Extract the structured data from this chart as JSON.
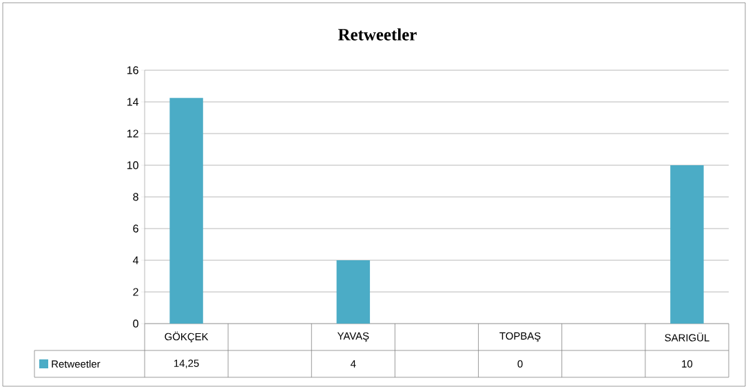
{
  "chart_data": {
    "type": "bar",
    "title": "Retweetler",
    "categories": [
      "GÖKÇEK",
      null,
      "YAVAŞ",
      null,
      "TOPBAŞ",
      null,
      "SARIGÜL"
    ],
    "series": [
      {
        "name": "Retweetler",
        "color": "#4bacc6",
        "values": [
          14.25,
          null,
          4,
          null,
          0,
          null,
          10
        ],
        "value_labels": [
          "14,25",
          null,
          "4",
          null,
          "0",
          null,
          "10"
        ]
      }
    ],
    "ylim": [
      0,
      16
    ],
    "yticks": [
      0,
      2,
      4,
      6,
      8,
      10,
      12,
      14,
      16
    ],
    "grid": "y",
    "legend": "bottom"
  }
}
